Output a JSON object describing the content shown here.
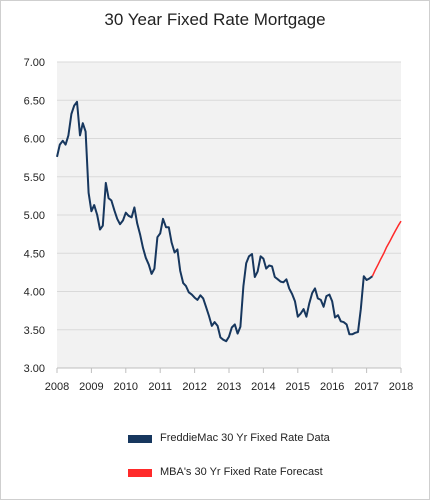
{
  "chart_data": {
    "type": "line",
    "title": "30 Year Fixed Rate Mortgage",
    "xlabel": "",
    "ylabel": "",
    "xlim": [
      2008,
      2018
    ],
    "ylim": [
      3.0,
      7.0
    ],
    "x_ticks": [
      "2008",
      "2009",
      "2010",
      "2011",
      "2012",
      "2013",
      "2014",
      "2015",
      "2016",
      "2017",
      "2018"
    ],
    "y_ticks": [
      "3.00",
      "3.50",
      "4.00",
      "4.50",
      "5.00",
      "5.50",
      "6.00",
      "6.50",
      "7.00"
    ],
    "grid": "horizontal",
    "legend_position": "bottom",
    "plot_background": "#f2f2f2",
    "series": [
      {
        "name": "FreddieMac 30 Yr Fixed Rate Data",
        "color": "#17375e",
        "x": [
          2008.0,
          2008.08,
          2008.17,
          2008.25,
          2008.33,
          2008.42,
          2008.5,
          2008.58,
          2008.67,
          2008.75,
          2008.83,
          2008.92,
          2009.0,
          2009.08,
          2009.17,
          2009.25,
          2009.33,
          2009.42,
          2009.5,
          2009.58,
          2009.67,
          2009.75,
          2009.83,
          2009.92,
          2010.0,
          2010.08,
          2010.17,
          2010.25,
          2010.33,
          2010.42,
          2010.5,
          2010.58,
          2010.67,
          2010.75,
          2010.83,
          2010.92,
          2011.0,
          2011.08,
          2011.17,
          2011.25,
          2011.33,
          2011.42,
          2011.5,
          2011.58,
          2011.67,
          2011.75,
          2011.83,
          2011.92,
          2012.0,
          2012.08,
          2012.17,
          2012.25,
          2012.33,
          2012.42,
          2012.5,
          2012.58,
          2012.67,
          2012.75,
          2012.83,
          2012.92,
          2013.0,
          2013.08,
          2013.17,
          2013.25,
          2013.33,
          2013.42,
          2013.5,
          2013.58,
          2013.67,
          2013.75,
          2013.83,
          2013.92,
          2014.0,
          2014.08,
          2014.17,
          2014.25,
          2014.33,
          2014.42,
          2014.5,
          2014.58,
          2014.67,
          2014.75,
          2014.83,
          2014.92,
          2015.0,
          2015.08,
          2015.17,
          2015.25,
          2015.33,
          2015.42,
          2015.5,
          2015.58,
          2015.67,
          2015.75,
          2015.83,
          2015.92,
          2016.0,
          2016.08,
          2016.17,
          2016.25,
          2016.33,
          2016.42,
          2016.5,
          2016.58,
          2016.67,
          2016.75,
          2016.83,
          2016.92,
          2017.0,
          2017.08,
          2017.17
        ],
        "values": [
          5.76,
          5.92,
          5.97,
          5.92,
          6.04,
          6.32,
          6.43,
          6.48,
          6.04,
          6.2,
          6.09,
          5.29,
          5.05,
          5.13,
          5.0,
          4.81,
          4.86,
          5.42,
          5.22,
          5.19,
          5.06,
          4.95,
          4.88,
          4.93,
          5.03,
          4.99,
          4.97,
          5.1,
          4.89,
          4.74,
          4.57,
          4.44,
          4.35,
          4.23,
          4.3,
          4.71,
          4.76,
          4.95,
          4.84,
          4.84,
          4.64,
          4.51,
          4.55,
          4.27,
          4.11,
          4.07,
          3.99,
          3.96,
          3.92,
          3.89,
          3.95,
          3.91,
          3.8,
          3.68,
          3.55,
          3.6,
          3.55,
          3.4,
          3.37,
          3.35,
          3.41,
          3.53,
          3.57,
          3.45,
          3.54,
          4.07,
          4.37,
          4.46,
          4.49,
          4.19,
          4.26,
          4.46,
          4.43,
          4.3,
          4.34,
          4.33,
          4.19,
          4.16,
          4.13,
          4.12,
          4.16,
          4.04,
          3.97,
          3.87,
          3.67,
          3.71,
          3.77,
          3.67,
          3.84,
          3.98,
          4.04,
          3.91,
          3.89,
          3.8,
          3.94,
          3.96,
          3.87,
          3.66,
          3.69,
          3.61,
          3.6,
          3.57,
          3.44,
          3.44,
          3.46,
          3.47,
          3.77,
          4.2,
          4.15,
          4.17,
          4.2
        ]
      },
      {
        "name": "MBA's 30 Yr Fixed Rate Forecast",
        "color": "#ff2a2a",
        "x": [
          2017.17,
          2017.25,
          2017.33,
          2017.42,
          2017.5,
          2017.58,
          2017.67,
          2017.75,
          2017.83,
          2017.92,
          2018.0
        ],
        "values": [
          4.2,
          4.28,
          4.35,
          4.43,
          4.5,
          4.58,
          4.65,
          4.72,
          4.79,
          4.86,
          4.92
        ]
      }
    ]
  }
}
